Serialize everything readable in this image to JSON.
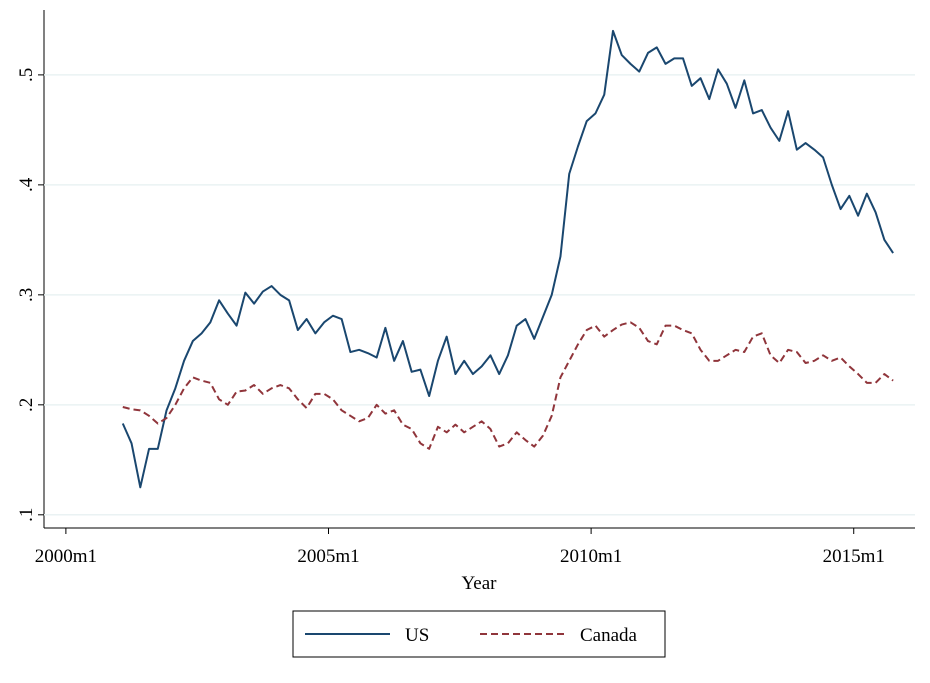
{
  "chart_data": {
    "type": "line",
    "xlabel": "Year",
    "x": [
      493,
      495,
      497,
      499,
      501,
      503,
      505,
      507,
      509,
      511,
      513,
      515,
      517,
      519,
      521,
      523,
      525,
      527,
      529,
      531,
      533,
      535,
      537,
      539,
      541,
      543,
      545,
      547,
      549,
      551,
      553,
      555,
      557,
      559,
      561,
      563,
      565,
      567,
      569,
      571,
      573,
      575,
      577,
      579,
      581,
      583,
      585,
      587,
      589,
      591,
      593,
      595,
      597,
      599,
      601,
      603,
      605,
      607,
      609,
      611,
      613,
      615,
      617,
      619,
      621,
      623,
      625,
      627,
      629,
      631,
      633,
      635,
      637,
      639,
      641,
      643,
      645,
      647,
      649,
      651,
      653,
      655,
      657,
      659,
      661,
      663,
      665,
      667,
      669
    ],
    "series": [
      {
        "name": "US",
        "color": "#1a476f",
        "dash": "none",
        "values": [
          0.183,
          0.165,
          0.125,
          0.16,
          0.16,
          0.195,
          0.215,
          0.24,
          0.258,
          0.265,
          0.275,
          0.295,
          0.283,
          0.272,
          0.302,
          0.292,
          0.303,
          0.308,
          0.3,
          0.295,
          0.268,
          0.278,
          0.265,
          0.275,
          0.281,
          0.278,
          0.248,
          0.25,
          0.247,
          0.243,
          0.27,
          0.24,
          0.258,
          0.23,
          0.232,
          0.208,
          0.24,
          0.262,
          0.228,
          0.24,
          0.228,
          0.235,
          0.245,
          0.228,
          0.245,
          0.272,
          0.278,
          0.26,
          0.28,
          0.3,
          0.335,
          0.41,
          0.435,
          0.458,
          0.465,
          0.482,
          0.54,
          0.518,
          0.51,
          0.503,
          0.52,
          0.525,
          0.51,
          0.515,
          0.515,
          0.49,
          0.497,
          0.478,
          0.505,
          0.492,
          0.47,
          0.495,
          0.465,
          0.468,
          0.452,
          0.44,
          0.467,
          0.432,
          0.438,
          0.432,
          0.425,
          0.4,
          0.378,
          0.39,
          0.372,
          0.392,
          0.375,
          0.35,
          0.338
        ]
      },
      {
        "name": "Canada",
        "color": "#90353b",
        "dash": "7 4",
        "values": [
          0.198,
          0.196,
          0.195,
          0.19,
          0.183,
          0.188,
          0.2,
          0.215,
          0.225,
          0.222,
          0.22,
          0.205,
          0.2,
          0.212,
          0.213,
          0.218,
          0.21,
          0.215,
          0.218,
          0.215,
          0.205,
          0.197,
          0.21,
          0.21,
          0.205,
          0.195,
          0.19,
          0.185,
          0.188,
          0.2,
          0.192,
          0.195,
          0.182,
          0.178,
          0.165,
          0.16,
          0.18,
          0.175,
          0.182,
          0.175,
          0.18,
          0.185,
          0.178,
          0.162,
          0.165,
          0.175,
          0.168,
          0.162,
          0.172,
          0.19,
          0.225,
          0.24,
          0.255,
          0.268,
          0.272,
          0.262,
          0.268,
          0.273,
          0.275,
          0.27,
          0.258,
          0.255,
          0.272,
          0.272,
          0.268,
          0.265,
          0.25,
          0.24,
          0.24,
          0.245,
          0.25,
          0.248,
          0.262,
          0.265,
          0.245,
          0.238,
          0.25,
          0.248,
          0.238,
          0.24,
          0.245,
          0.24,
          0.243,
          0.235,
          0.228,
          0.22,
          0.22,
          0.228,
          0.222
        ]
      }
    ],
    "xlim": [
      475,
      674
    ],
    "ylim": [
      0.088,
      0.559
    ],
    "xticks": [
      {
        "value": 480,
        "label": "2000m1"
      },
      {
        "value": 540,
        "label": "2005m1"
      },
      {
        "value": 600,
        "label": "2010m1"
      },
      {
        "value": 660,
        "label": "2015m1"
      }
    ],
    "yticks": [
      {
        "value": 0.1,
        "label": ".1"
      },
      {
        "value": 0.2,
        "label": ".2"
      },
      {
        "value": 0.3,
        "label": ".3"
      },
      {
        "value": 0.4,
        "label": ".4"
      },
      {
        "value": 0.5,
        "label": ".5"
      }
    ],
    "grid": true
  }
}
